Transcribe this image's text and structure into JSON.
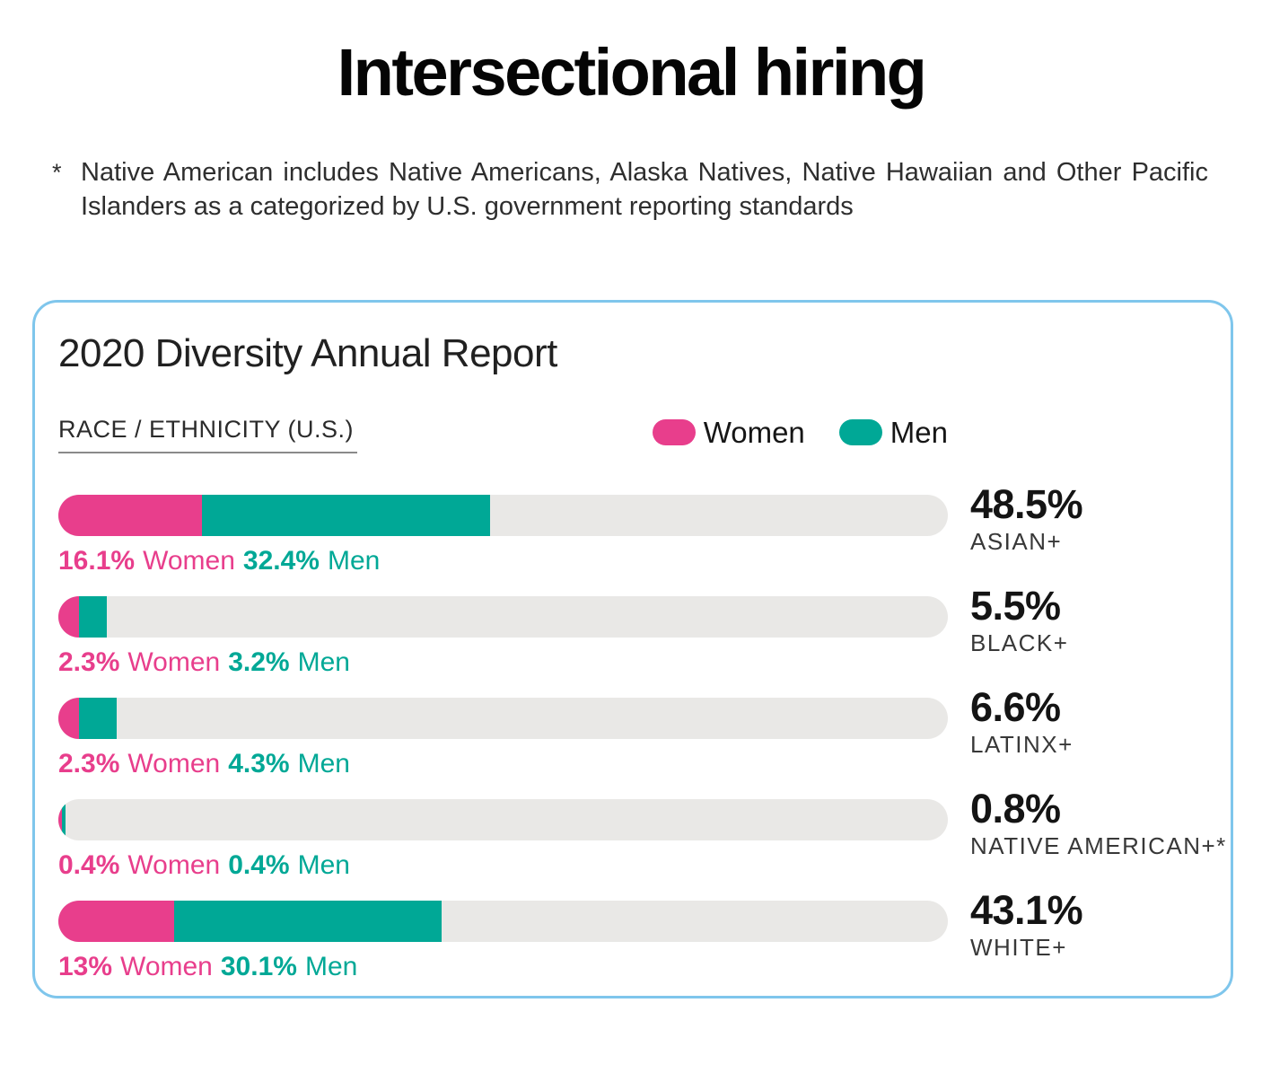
{
  "page": {
    "title": "Intersectional hiring",
    "footnote_marker": "*",
    "footnote": "Native American includes Native Americans, Alaska Natives, Native Hawaiian and Other Pacific Islanders as a categorized by U.S. government reporting standards"
  },
  "card": {
    "title": "2020 Diversity Annual Report",
    "section_label": "RACE / ETHNICITY (U.S.)",
    "legend": [
      {
        "label": "Women",
        "color": "#e83e8c"
      },
      {
        "label": "Men",
        "color": "#00a896"
      }
    ]
  },
  "colors": {
    "women_pink": "#e83e8c",
    "men_teal": "#00a896",
    "bar_track_gray": "#e9e8e6",
    "card_border_blue": "#7fc6ec",
    "text_black": "#141414"
  },
  "chart_data": {
    "type": "bar",
    "orientation": "horizontal",
    "stacked": true,
    "title": "2020 Diversity Annual Report",
    "subtitle": "RACE / ETHNICITY (U.S.)",
    "categories": [
      "ASIAN+",
      "BLACK+",
      "LATINX+",
      "NATIVE AMERICAN+*",
      "WHITE+"
    ],
    "series": [
      {
        "name": "Women",
        "color": "#e83e8c",
        "values": [
          16.1,
          2.3,
          2.3,
          0.4,
          13
        ]
      },
      {
        "name": "Men",
        "color": "#00a896",
        "values": [
          32.4,
          3.2,
          4.3,
          0.4,
          30.1
        ]
      }
    ],
    "totals": [
      48.5,
      5.5,
      6.6,
      0.8,
      43.1
    ],
    "xlim": [
      0,
      100
    ],
    "unit": "%",
    "legend_position": "top-right",
    "grid": false
  },
  "rows": [
    {
      "women_pct": "16.1%",
      "women_word": "Women",
      "men_pct": "32.4%",
      "men_word": "Men",
      "total": "48.5%",
      "category": "ASIAN+",
      "women_width": 16.1,
      "men_width": 32.4
    },
    {
      "women_pct": "2.3%",
      "women_word": "Women",
      "men_pct": "3.2%",
      "men_word": "Men",
      "total": "5.5%",
      "category": "BLACK+",
      "women_width": 2.3,
      "men_width": 3.2
    },
    {
      "women_pct": "2.3%",
      "women_word": "Women",
      "men_pct": "4.3%",
      "men_word": "Men",
      "total": "6.6%",
      "category": "LATINX+",
      "women_width": 2.3,
      "men_width": 4.3
    },
    {
      "women_pct": "0.4%",
      "women_word": "Women",
      "men_pct": "0.4%",
      "men_word": "Men",
      "total": "0.8%",
      "category": "NATIVE AMERICAN+*",
      "women_width": 0.4,
      "men_width": 0.4
    },
    {
      "women_pct": "13%",
      "women_word": "Women",
      "men_pct": "30.1%",
      "men_word": "Men",
      "total": "43.1%",
      "category": "WHITE+",
      "women_width": 13,
      "men_width": 30.1
    }
  ]
}
